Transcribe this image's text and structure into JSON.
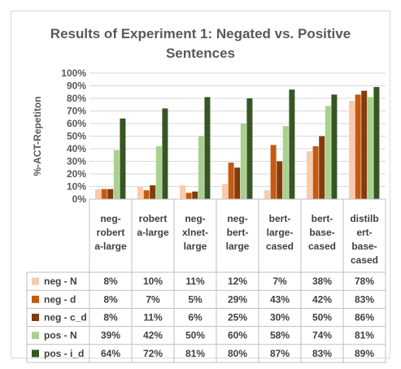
{
  "chart_data": {
    "type": "bar",
    "title_line1": "Results of Experiment 1:  Negated vs. Positive",
    "title_line2": "Sentences",
    "ylabel": "%-ACT-Repetiton",
    "ylim": [
      0,
      100
    ],
    "yticks": [
      "0%",
      "10%",
      "20%",
      "30%",
      "40%",
      "50%",
      "60%",
      "70%",
      "80%",
      "90%",
      "100%"
    ],
    "grid": true,
    "legend": "data-table",
    "categories": [
      [
        "neg-",
        "robert",
        "a-large"
      ],
      [
        "robert",
        "a-large"
      ],
      [
        "neg-",
        "xlnet-",
        "large"
      ],
      [
        "neg-",
        "bert-",
        "large"
      ],
      [
        "bert-",
        "large-",
        "cased"
      ],
      [
        "bert-",
        "base-",
        "cased"
      ],
      [
        "distilb",
        "ert-",
        "base-",
        "cased"
      ]
    ],
    "series": [
      {
        "name": "neg - N",
        "color": "#f8cbad",
        "values": [
          8,
          10,
          11,
          12,
          7,
          38,
          78
        ],
        "labels": [
          "8%",
          "10%",
          "11%",
          "12%",
          "7%",
          "38%",
          "78%"
        ]
      },
      {
        "name": "neg -  d",
        "color": "#c55a11",
        "values": [
          8,
          7,
          5,
          29,
          43,
          42,
          83
        ],
        "labels": [
          "8%",
          "7%",
          "5%",
          "29%",
          "43%",
          "42%",
          "83%"
        ]
      },
      {
        "name": "neg - c_d",
        "color": "#843c0c",
        "values": [
          8,
          11,
          6,
          25,
          30,
          50,
          86
        ],
        "labels": [
          "8%",
          "11%",
          "6%",
          "25%",
          "30%",
          "50%",
          "86%"
        ]
      },
      {
        "name": "pos - N",
        "color": "#a9d18e",
        "values": [
          39,
          42,
          50,
          60,
          58,
          74,
          81
        ],
        "labels": [
          "39%",
          "42%",
          "50%",
          "60%",
          "58%",
          "74%",
          "81%"
        ]
      },
      {
        "name": "pos -  i_d",
        "color": "#375623",
        "values": [
          64,
          72,
          81,
          80,
          87,
          83,
          89
        ],
        "labels": [
          "64%",
          "72%",
          "81%",
          "80%",
          "87%",
          "83%",
          "89%"
        ]
      }
    ]
  }
}
